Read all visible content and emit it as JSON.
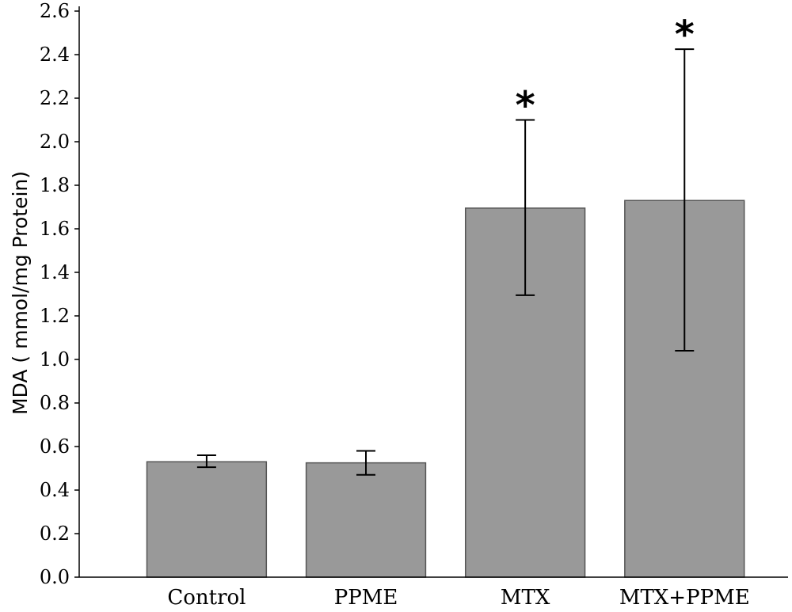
{
  "chart_data": {
    "type": "bar",
    "title": "",
    "xlabel": "",
    "ylabel": "MDA ( mmol/mg Protein)",
    "categories": [
      "Control",
      "PPME",
      "MTX",
      "MTX+PPME"
    ],
    "values": [
      0.53,
      0.525,
      1.695,
      1.73
    ],
    "error_low": [
      0.505,
      0.47,
      1.295,
      1.04
    ],
    "error_high": [
      0.56,
      0.58,
      2.1,
      2.425
    ],
    "annotations": [
      "",
      "",
      "*",
      "*"
    ],
    "ylim": [
      0,
      2.6
    ],
    "yticks": [
      "0.0",
      "0.2",
      "0.4",
      "0.6",
      "0.8",
      "1.0",
      "1.2",
      "1.4",
      "1.6",
      "1.8",
      "2.0",
      "2.2",
      "2.4",
      "2.6"
    ],
    "grid": false,
    "legend": "none",
    "bar_color": "#999999",
    "bar_edge_color": "#555555"
  }
}
